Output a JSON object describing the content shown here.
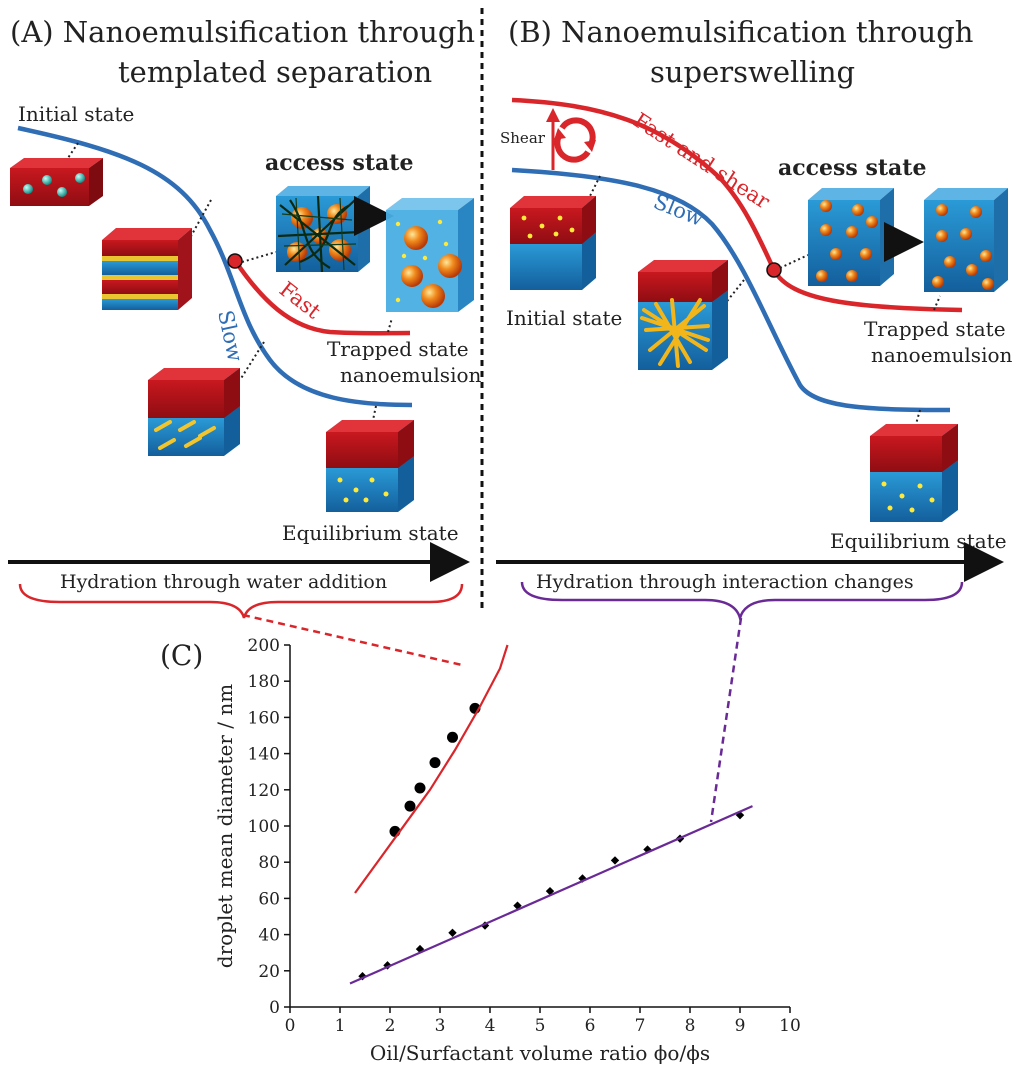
{
  "panel_a": {
    "title_line1": "(A) Nanoemulsification through",
    "title_line2": "templated separation",
    "initial_state": "Initial state",
    "access_state": "access state",
    "fast": "Fast",
    "slow": "Slow",
    "trapped_line1": "Trapped state",
    "trapped_line2": "nanoemulsion",
    "equilibrium": "Equilibrium state",
    "hydration": "Hydration through water addition"
  },
  "panel_b": {
    "title_line1": "(B) Nanoemulsification through",
    "title_line2": "superswelling",
    "shear": "Shear",
    "fast_shear": "Fast and shear",
    "slow": "Slow",
    "access_state": "access state",
    "initial_state": "Initial state",
    "trapped_line1": "Trapped state",
    "trapped_line2": "nanoemulsion",
    "equilibrium": "Equilibrium state",
    "hydration": "Hydration through interaction changes"
  },
  "panel_c": {
    "label": "(C)",
    "ylabel": "droplet mean diameter / nm",
    "xlabel": "Oil/Surfactant volume ratio ϕo/ϕs",
    "xticks": [
      "0",
      "1",
      "2",
      "3",
      "4",
      "5",
      "6",
      "7",
      "8",
      "9",
      "10"
    ],
    "yticks": [
      "0",
      "20",
      "40",
      "60",
      "80",
      "100",
      "120",
      "140",
      "160",
      "180",
      "200"
    ]
  },
  "colors": {
    "red": "#d9262b",
    "blue": "#2f6db5",
    "purple": "#6a2a96",
    "box_top": "#b5121b",
    "box_bottom": "#1d7fc0"
  },
  "chart_data": {
    "type": "scatter",
    "xlabel": "Oil/Surfactant volume ratio ϕo/ϕs",
    "ylabel": "droplet mean diameter / nm",
    "xlim": [
      0,
      10
    ],
    "ylim": [
      0,
      200
    ],
    "series": [
      {
        "marker": "circle",
        "color": "#000000",
        "points": [
          [
            2.1,
            97
          ],
          [
            2.4,
            111
          ],
          [
            2.6,
            121
          ],
          [
            2.9,
            135
          ],
          [
            3.25,
            149
          ],
          [
            3.7,
            165
          ]
        ]
      },
      {
        "marker": "diamond",
        "color": "#000000",
        "points": [
          [
            1.45,
            17
          ],
          [
            1.95,
            23
          ],
          [
            2.6,
            32
          ],
          [
            3.25,
            41
          ],
          [
            3.9,
            45
          ],
          [
            4.55,
            56
          ],
          [
            5.2,
            64
          ],
          [
            5.85,
            71
          ],
          [
            6.5,
            81
          ],
          [
            7.15,
            87
          ],
          [
            7.8,
            93
          ],
          [
            9.0,
            106
          ]
        ]
      },
      {
        "type": "line",
        "color": "#d9262b",
        "points": [
          [
            1.3,
            63
          ],
          [
            1.8,
            82
          ],
          [
            2.3,
            101
          ],
          [
            2.8,
            120
          ],
          [
            3.3,
            142
          ],
          [
            3.8,
            166
          ],
          [
            4.2,
            187
          ],
          [
            4.35,
            200
          ]
        ]
      },
      {
        "type": "line",
        "color": "#6a2a96",
        "points": [
          [
            1.2,
            13
          ],
          [
            9.25,
            111
          ]
        ]
      }
    ]
  }
}
